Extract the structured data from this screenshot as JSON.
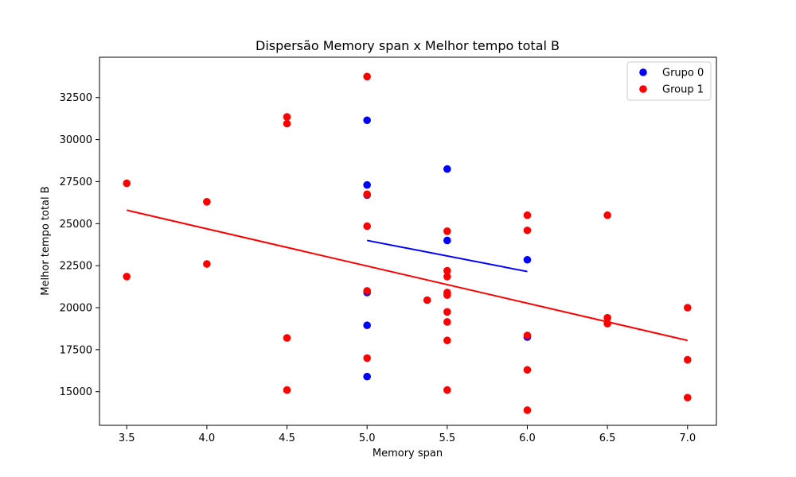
{
  "chart_data": {
    "type": "scatter",
    "title": "Dispersão Memory span x Melhor tempo total B",
    "xlabel": "Memory span",
    "ylabel": "Melhor tempo total B",
    "xlim": [
      3.33,
      7.18
    ],
    "ylim": [
      13000,
      34900
    ],
    "x_ticks": [
      3.5,
      4.0,
      4.5,
      5.0,
      5.5,
      6.0,
      6.5,
      7.0
    ],
    "x_tick_labels": [
      "3.5",
      "4.0",
      "4.5",
      "5.0",
      "5.5",
      "6.0",
      "6.5",
      "7.0"
    ],
    "y_ticks": [
      15000,
      17500,
      20000,
      22500,
      25000,
      27500,
      30000,
      32500
    ],
    "y_tick_labels": [
      "15000",
      "17500",
      "20000",
      "22500",
      "25000",
      "27500",
      "30000",
      "32500"
    ],
    "grid": false,
    "legend_position": "top-right",
    "series": [
      {
        "name": "Grupo 0",
        "color": "#0000ff",
        "points": [
          [
            5.0,
            31150
          ],
          [
            5.0,
            27300
          ],
          [
            5.0,
            26700
          ],
          [
            5.0,
            20900
          ],
          [
            5.0,
            18950
          ],
          [
            5.0,
            15900
          ],
          [
            5.5,
            28250
          ],
          [
            5.5,
            24000
          ],
          [
            6.0,
            22850
          ],
          [
            6.0,
            18250
          ]
        ],
        "trendline": [
          [
            5.0,
            24000
          ],
          [
            6.0,
            22150
          ]
        ]
      },
      {
        "name": "Group 1",
        "color": "#ff0000",
        "points": [
          [
            3.5,
            27400
          ],
          [
            3.5,
            21850
          ],
          [
            4.0,
            26300
          ],
          [
            4.0,
            22600
          ],
          [
            4.5,
            31350
          ],
          [
            4.5,
            30950
          ],
          [
            4.5,
            18200
          ],
          [
            4.5,
            15100
          ],
          [
            5.0,
            33750
          ],
          [
            5.0,
            26750
          ],
          [
            5.0,
            24850
          ],
          [
            5.0,
            21000
          ],
          [
            5.0,
            17000
          ],
          [
            5.375,
            20450
          ],
          [
            5.5,
            24550
          ],
          [
            5.5,
            22200
          ],
          [
            5.5,
            21850
          ],
          [
            5.5,
            20900
          ],
          [
            5.5,
            20750
          ],
          [
            5.5,
            19750
          ],
          [
            5.5,
            19150
          ],
          [
            5.5,
            18050
          ],
          [
            5.5,
            15100
          ],
          [
            6.0,
            25500
          ],
          [
            6.0,
            24600
          ],
          [
            6.0,
            18350
          ],
          [
            6.0,
            16300
          ],
          [
            6.0,
            13900
          ],
          [
            6.5,
            25500
          ],
          [
            6.5,
            19400
          ],
          [
            6.5,
            19050
          ],
          [
            7.0,
            20000
          ],
          [
            7.0,
            16900
          ],
          [
            7.0,
            14650
          ]
        ],
        "trendline": [
          [
            3.5,
            25800
          ],
          [
            7.0,
            18050
          ]
        ]
      }
    ]
  }
}
